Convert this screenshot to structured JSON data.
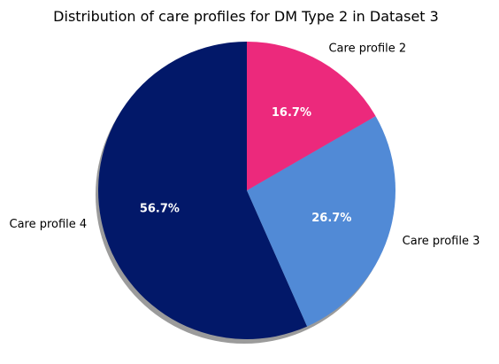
{
  "chart_data": {
    "type": "pie",
    "title": "Distribution of care profiles for DM Type 2 in Dataset 3",
    "slices": [
      {
        "label": "Care profile 4",
        "value": 56.7,
        "pct_label": "56.7%",
        "color": "#021869"
      },
      {
        "label": "Care profile 3",
        "value": 26.7,
        "pct_label": "26.7%",
        "color": "#518AD6"
      },
      {
        "label": "Care profile 2",
        "value": 16.7,
        "pct_label": "16.7%",
        "color": "#EC297C"
      }
    ],
    "start_angle_deg": 90,
    "direction": "counterclockwise",
    "shadow": true,
    "legend": "none"
  }
}
